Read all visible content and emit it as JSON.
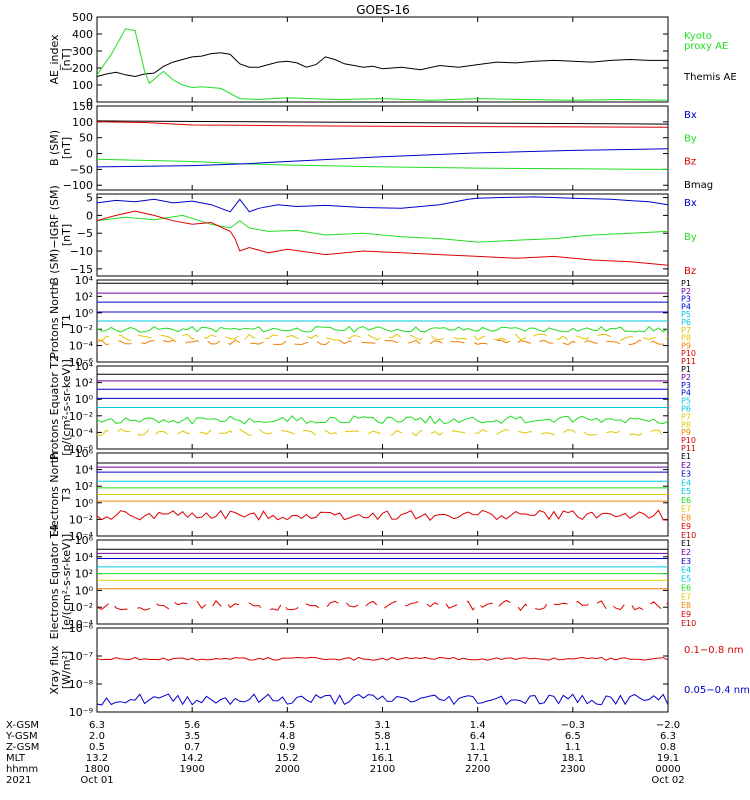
{
  "title": "GOES-16",
  "colors": {
    "black": "#000000",
    "green": "#22dd22",
    "blue": "#0000cc",
    "red": "#dd0000",
    "purple": "#6a00a0",
    "cyan": "#00c8e0",
    "yellow": "#e0c800",
    "orange": "#f08000",
    "darkred": "#c80000"
  },
  "chart_data": [
    {
      "type": "line",
      "panel": "ae",
      "ylabel": "AE_index [nT]",
      "ylim": [
        0,
        500
      ],
      "ticks": [
        "0",
        "100",
        "200",
        "300",
        "400",
        "500"
      ],
      "legend": [
        {
          "text": "Kyoto",
          "color": "#22dd22"
        },
        {
          "text": "proxy AE",
          "color": "#22dd22"
        },
        {
          "text": "Themis AE",
          "color": "#000000"
        }
      ],
      "series": [
        {
          "name": "Themis AE",
          "color": "#000000",
          "x": [
            0,
            0.1,
            0.2,
            0.3,
            0.4,
            0.5,
            0.6,
            0.7,
            0.8,
            0.9,
            1.0,
            1.1,
            1.2,
            1.3,
            1.4,
            1.5,
            1.6,
            1.7,
            1.8,
            1.9,
            2.0,
            2.1,
            2.2,
            2.3,
            2.4,
            2.5,
            2.6,
            2.7,
            2.8,
            2.9,
            3.0,
            3.2,
            3.4,
            3.6,
            3.8,
            4.0,
            4.2,
            4.4,
            4.6,
            4.8,
            5.0,
            5.2,
            5.4,
            5.6,
            5.8,
            6.0
          ],
          "y": [
            150,
            165,
            175,
            160,
            150,
            165,
            170,
            210,
            235,
            250,
            265,
            270,
            285,
            290,
            280,
            225,
            205,
            205,
            220,
            235,
            240,
            230,
            205,
            220,
            265,
            250,
            225,
            215,
            205,
            210,
            195,
            205,
            190,
            215,
            205,
            220,
            235,
            230,
            240,
            245,
            240,
            235,
            245,
            250,
            245,
            245
          ]
        },
        {
          "name": "Kyoto proxy AE",
          "color": "#22dd22",
          "x": [
            0,
            0.15,
            0.3,
            0.4,
            0.5,
            0.55,
            0.7,
            0.8,
            0.9,
            1.0,
            1.1,
            1.3,
            1.5,
            1.7,
            2.0,
            2.5,
            3.0,
            3.5,
            4.0,
            4.5,
            5.0,
            5.5,
            6.0
          ],
          "y": [
            160,
            280,
            430,
            420,
            180,
            110,
            180,
            130,
            100,
            85,
            90,
            80,
            20,
            15,
            25,
            15,
            20,
            10,
            20,
            15,
            10,
            15,
            10
          ]
        }
      ]
    },
    {
      "type": "line",
      "panel": "bsm",
      "ylabel": "B (SM) [nT]",
      "ylim": [
        -115,
        150
      ],
      "ticks": [
        "150",
        "100",
        "50",
        "0",
        "−50",
        "−100"
      ],
      "tick_values": [
        150,
        100,
        50,
        0,
        -50,
        -100
      ],
      "legend": [
        {
          "text": "Bx",
          "color": "#0000cc"
        },
        {
          "text": "By",
          "color": "#22dd22"
        },
        {
          "text": "Bz",
          "color": "#dd0000"
        },
        {
          "text": "Bmag",
          "color": "#000000"
        }
      ],
      "series": [
        {
          "name": "Bmag",
          "color": "#000000",
          "x": [
            0,
            6
          ],
          "y": [
            103,
            93
          ]
        },
        {
          "name": "Bz",
          "color": "#dd0000",
          "x": [
            0,
            0.5,
            1.0,
            1.5,
            2.0,
            3.0,
            4.0,
            5.0,
            6.0
          ],
          "y": [
            100,
            98,
            90,
            89,
            88,
            86,
            85,
            84,
            83
          ]
        },
        {
          "name": "By",
          "color": "#22dd22",
          "x": [
            0,
            1.0,
            1.5,
            2.0,
            3.0,
            4.0,
            5.0,
            6.0
          ],
          "y": [
            -18,
            -25,
            -32,
            -36,
            -42,
            -46,
            -48,
            -50
          ]
        },
        {
          "name": "Bx",
          "color": "#0000cc",
          "x": [
            0,
            1.0,
            1.5,
            2.0,
            3.0,
            4.0,
            5.0,
            6.0
          ],
          "y": [
            -42,
            -38,
            -33,
            -25,
            -10,
            2,
            10,
            15
          ]
        }
      ]
    },
    {
      "type": "line",
      "panel": "bdiff",
      "ylabel": "B (SM)−IGRF (SM) [nT]",
      "ylim": [
        -17,
        6
      ],
      "ticks": [
        "5",
        "0",
        "−5",
        "−10",
        "−15"
      ],
      "tick_values": [
        5,
        0,
        -5,
        -10,
        -15
      ],
      "legend": [
        {
          "text": "Bx",
          "color": "#0000cc"
        },
        {
          "text": "By",
          "color": "#22dd22"
        },
        {
          "text": "Bz",
          "color": "#dd0000"
        }
      ],
      "series": [
        {
          "name": "Bx",
          "color": "#0000cc",
          "x": [
            0,
            0.2,
            0.4,
            0.6,
            0.8,
            1.0,
            1.2,
            1.4,
            1.5,
            1.6,
            1.7,
            1.9,
            2.1,
            2.4,
            2.8,
            3.2,
            3.6,
            3.9,
            4.0,
            4.2,
            4.6,
            5.0,
            5.4,
            5.8,
            6.0
          ],
          "y": [
            3.5,
            4.2,
            3.8,
            4.5,
            3.5,
            4.0,
            3.0,
            1.0,
            4.5,
            1.0,
            2.0,
            3.0,
            2.5,
            2.8,
            2.2,
            2.0,
            3.0,
            4.5,
            4.8,
            5.0,
            5.2,
            4.8,
            4.5,
            3.8,
            3.0
          ]
        },
        {
          "name": "By",
          "color": "#22dd22",
          "x": [
            0,
            0.3,
            0.6,
            0.9,
            1.2,
            1.4,
            1.5,
            1.6,
            1.8,
            2.1,
            2.4,
            2.8,
            3.2,
            3.6,
            4.0,
            4.4,
            4.8,
            5.2,
            5.6,
            6.0
          ],
          "y": [
            -1.5,
            -0.5,
            -1.2,
            0.0,
            -2.5,
            -3.5,
            -1.5,
            -3.5,
            -4.5,
            -4.2,
            -5.5,
            -5.0,
            -6.0,
            -6.5,
            -7.5,
            -7.0,
            -6.5,
            -5.5,
            -5.0,
            -4.5
          ]
        },
        {
          "name": "Bz",
          "color": "#dd0000",
          "x": [
            0,
            0.2,
            0.4,
            0.6,
            0.8,
            1.0,
            1.2,
            1.4,
            1.45,
            1.5,
            1.6,
            1.8,
            2.0,
            2.4,
            2.8,
            3.2,
            3.6,
            4.0,
            4.4,
            4.8,
            5.2,
            5.6,
            6.0
          ],
          "y": [
            -1.5,
            0.0,
            1.2,
            0.0,
            -1.5,
            -2.5,
            -2.0,
            -4.5,
            -6.5,
            -10.0,
            -9.0,
            -10.5,
            -9.5,
            -11.0,
            -10.0,
            -10.5,
            -11.0,
            -11.5,
            -12.0,
            -11.5,
            -12.5,
            -13.0,
            -14.0
          ]
        }
      ]
    },
    {
      "type": "line",
      "panel": "protons_north",
      "ylabel": "Protons North T1",
      "scale": "log",
      "ylim": [
        -6,
        4
      ],
      "ticks": [
        "10⁴",
        "10²",
        "10⁰",
        "10⁻²",
        "10⁻⁴",
        "10⁻⁶"
      ],
      "legend": [
        "P1",
        "P2",
        "P3",
        "P4",
        "P5",
        "P6",
        "P7",
        "P8",
        "P9",
        "P10",
        "P11"
      ],
      "legend_colors": [
        "#000000",
        "#6a00a0",
        "#0000cc",
        "#0000cc",
        "#00c8e0",
        "#00c8e0",
        "#e0c800",
        "#e0c800",
        "#f08000",
        "#dd0000",
        "#c80000"
      ],
      "series": [
        {
          "name": "P1",
          "color": "#000000",
          "level": 3.6
        },
        {
          "name": "P2",
          "color": "#6a00a0",
          "level": 2.4
        },
        {
          "name": "P3",
          "color": "#0000cc",
          "level": 1.3
        },
        {
          "name": "P4",
          "color": "#0000cc",
          "level": 0.1
        },
        {
          "name": "P5",
          "color": "#00c8e0",
          "level": -1.0
        },
        {
          "name": "P6",
          "color": "#22dd22",
          "level": -2.0,
          "noise": 0.35
        },
        {
          "name": "P7",
          "color": "#e0c800",
          "level": -3.0,
          "noise": 0.4,
          "dashed": true
        },
        {
          "name": "P8",
          "color": "#f08000",
          "level": -3.6,
          "noise": 0.3,
          "dashed": true
        }
      ]
    },
    {
      "type": "line",
      "panel": "protons_equator",
      "ylabel": "Protons Equator T2 [p/(cm²-s-sr-keV)]",
      "scale": "log",
      "ylim": [
        -6,
        4
      ],
      "ticks": [
        "10⁴",
        "10²",
        "10⁰",
        "10⁻²",
        "10⁻⁴",
        "10⁻⁶"
      ],
      "legend": [
        "P1",
        "P2",
        "P3",
        "P4",
        "P5",
        "P6",
        "P7",
        "P8",
        "P9",
        "P10",
        "P11"
      ],
      "legend_colors": [
        "#000000",
        "#6a00a0",
        "#0000cc",
        "#0000cc",
        "#00c8e0",
        "#00c8e0",
        "#e0c800",
        "#e0c800",
        "#f08000",
        "#dd0000",
        "#c80000"
      ],
      "series": [
        {
          "name": "P1",
          "color": "#000000",
          "level": 3.0
        },
        {
          "name": "P2",
          "color": "#6a00a0",
          "level": 2.2
        },
        {
          "name": "P3",
          "color": "#0000cc",
          "level": 1.2
        },
        {
          "name": "P4",
          "color": "#0000cc",
          "level": 0.1
        },
        {
          "name": "P5",
          "color": "#00c8e0",
          "level": -1.0
        },
        {
          "name": "P6",
          "color": "#22dd22",
          "level": -2.5,
          "noise": 0.5
        },
        {
          "name": "P7",
          "color": "#e0c800",
          "level": -4.0,
          "noise": 0.4,
          "dashed": true
        }
      ]
    },
    {
      "type": "line",
      "panel": "electrons_north",
      "ylabel": "Electrons North T3",
      "scale": "log",
      "ylim": [
        -4,
        6
      ],
      "ticks": [
        "10⁶",
        "10⁴",
        "10²",
        "10⁰",
        "10⁻²",
        "10⁻⁴"
      ],
      "legend": [
        "E1",
        "E2",
        "E3",
        "E4",
        "E5",
        "E6",
        "E7",
        "E8",
        "E9",
        "E10"
      ],
      "legend_colors": [
        "#000000",
        "#6a00a0",
        "#0000cc",
        "#00c8e0",
        "#00c8e0",
        "#22dd22",
        "#e0c800",
        "#f08000",
        "#dd0000",
        "#c80000"
      ],
      "series": [
        {
          "name": "E1",
          "color": "#000000",
          "level": 4.8
        },
        {
          "name": "E2",
          "color": "#6a00a0",
          "level": 4.3
        },
        {
          "name": "E3",
          "color": "#0000cc",
          "level": 3.7
        },
        {
          "name": "E4",
          "color": "#00c8e0",
          "level": 2.6
        },
        {
          "name": "E5",
          "color": "#22dd22",
          "level": 1.8
        },
        {
          "name": "E6",
          "color": "#e0c800",
          "level": 1.0
        },
        {
          "name": "E7",
          "color": "#f08000",
          "level": 0.2
        },
        {
          "name": "E8",
          "color": "#dd0000",
          "level": -1.5,
          "noise": 0.6
        }
      ]
    },
    {
      "type": "line",
      "panel": "electrons_equator",
      "ylabel": "Electrons Equator T4 [e/(cm²-s-sr-keV)]",
      "scale": "log",
      "ylim": [
        -4,
        6
      ],
      "ticks": [
        "10⁶",
        "10⁴",
        "10²",
        "10⁰",
        "10⁻²",
        "10⁻⁴"
      ],
      "legend": [
        "E1",
        "E2",
        "E3",
        "E4",
        "E5",
        "E6",
        "E7",
        "E8",
        "E9",
        "E10"
      ],
      "legend_colors": [
        "#000000",
        "#6a00a0",
        "#0000cc",
        "#00c8e0",
        "#00c8e0",
        "#22dd22",
        "#e0c800",
        "#f08000",
        "#dd0000",
        "#c80000"
      ],
      "series": [
        {
          "name": "E1",
          "color": "#000000",
          "level": 4.9
        },
        {
          "name": "E2",
          "color": "#6a00a0",
          "level": 4.4
        },
        {
          "name": "E3",
          "color": "#0000cc",
          "level": 3.8
        },
        {
          "name": "E4",
          "color": "#00c8e0",
          "level": 2.8
        },
        {
          "name": "E5",
          "color": "#22dd22",
          "level": 2.0
        },
        {
          "name": "E6",
          "color": "#e0c800",
          "level": 1.2
        },
        {
          "name": "E7",
          "color": "#f08000",
          "level": 0.2
        },
        {
          "name": "E8",
          "color": "#dd0000",
          "level": -1.8,
          "noise": 0.6,
          "dashed": true
        }
      ]
    },
    {
      "type": "line",
      "panel": "xray",
      "ylabel": "Xray flux [W/m²]",
      "scale": "log",
      "ylim": [
        -9,
        -6
      ],
      "ticks": [
        "10⁻⁶",
        "10⁻⁷",
        "10⁻⁸",
        "10⁻⁹"
      ],
      "legend": [
        {
          "text": "0.1−0.8 nm",
          "color": "#dd0000"
        },
        {
          "text": "0.05−0.4 nm",
          "color": "#0000cc"
        }
      ],
      "series": [
        {
          "name": "0.1−0.8 nm",
          "color": "#dd0000",
          "level": -7.1,
          "noise": 0.05
        },
        {
          "name": "0.05−0.4 nm",
          "color": "#0000cc",
          "level": -8.55,
          "noise": 0.2
        }
      ]
    }
  ],
  "xaxis": {
    "xlim": [
      0,
      6
    ],
    "row_labels": [
      "X-GSM",
      "Y-GSM",
      "Z-GSM",
      "MLT",
      "hhmm",
      "2021"
    ],
    "ticks": [
      {
        "x": 0,
        "values": [
          "6.3",
          "2.0",
          "0.5",
          "13.2",
          "1800",
          "Oct 01"
        ]
      },
      {
        "x": 1,
        "values": [
          "5.6",
          "3.5",
          "0.7",
          "14.2",
          "1900",
          ""
        ]
      },
      {
        "x": 2,
        "values": [
          "4.5",
          "4.8",
          "0.9",
          "15.2",
          "2000",
          ""
        ]
      },
      {
        "x": 3,
        "values": [
          "3.1",
          "5.8",
          "1.1",
          "16.1",
          "2100",
          ""
        ]
      },
      {
        "x": 4,
        "values": [
          "1.4",
          "6.4",
          "1.1",
          "17.1",
          "2200",
          ""
        ]
      },
      {
        "x": 5,
        "values": [
          "−0.3",
          "6.5",
          "1.1",
          "18.1",
          "2300",
          ""
        ]
      },
      {
        "x": 6,
        "values": [
          "−2.0",
          "6.3",
          "0.8",
          "19.1",
          "0000",
          "Oct 02"
        ]
      }
    ]
  }
}
